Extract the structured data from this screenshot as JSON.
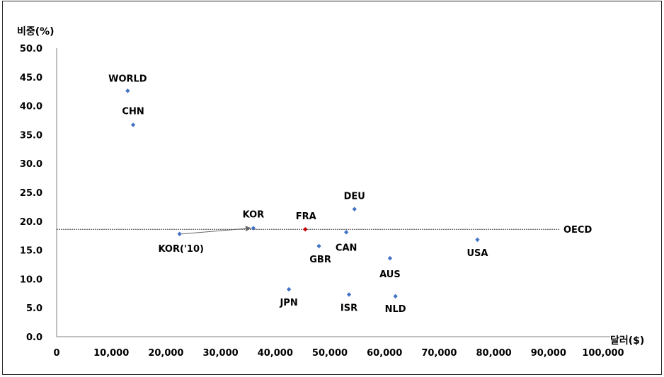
{
  "chart_data": {
    "type": "scatter",
    "ylabel": "비중(%)",
    "xlabel": "달러($)",
    "xlim": [
      0,
      100000
    ],
    "ylim": [
      0,
      50
    ],
    "x_ticks": [
      0,
      10000,
      20000,
      30000,
      40000,
      50000,
      60000,
      70000,
      80000,
      90000,
      100000
    ],
    "x_tick_labels": [
      "0",
      "10,000",
      "20,000",
      "30,000",
      "40,000",
      "50,000",
      "60,000",
      "70,000",
      "80,000",
      "90,000",
      "100,000"
    ],
    "y_ticks": [
      0,
      5,
      10,
      15,
      20,
      25,
      30,
      35,
      40,
      45,
      50
    ],
    "y_tick_labels": [
      "0.0",
      "5.0",
      "10.0",
      "15.0",
      "20.0",
      "25.0",
      "30.0",
      "35.0",
      "40.0",
      "45.0",
      "50.0"
    ],
    "grid": false,
    "points": [
      {
        "label": "WORLD",
        "x": 13000,
        "y": 42.6,
        "color": "#4472c4"
      },
      {
        "label": "CHN",
        "x": 14000,
        "y": 36.7,
        "color": "#4472c4"
      },
      {
        "label": "KOR('10)",
        "x": 22500,
        "y": 17.8,
        "color": "#4472c4"
      },
      {
        "label": "KOR",
        "x": 36000,
        "y": 18.8,
        "color": "#4472c4"
      },
      {
        "label": "JPN",
        "x": 42500,
        "y": 8.2,
        "color": "#4472c4"
      },
      {
        "label": "FRA",
        "x": 45500,
        "y": 18.6,
        "color": "#c00000"
      },
      {
        "label": "GBR",
        "x": 48000,
        "y": 15.7,
        "color": "#4472c4"
      },
      {
        "label": "CAN",
        "x": 53000,
        "y": 18.1,
        "color": "#4472c4"
      },
      {
        "label": "ISR",
        "x": 53500,
        "y": 7.3,
        "color": "#4472c4"
      },
      {
        "label": "DEU",
        "x": 54500,
        "y": 22.1,
        "color": "#4472c4"
      },
      {
        "label": "AUS",
        "x": 61000,
        "y": 13.6,
        "color": "#4472c4"
      },
      {
        "label": "NLD",
        "x": 62000,
        "y": 7.0,
        "color": "#4472c4"
      },
      {
        "label": "USA",
        "x": 77000,
        "y": 16.8,
        "color": "#4472c4"
      }
    ],
    "reference_line": {
      "label": "OECD",
      "y": 18.6
    },
    "arrow": {
      "from": "KOR('10)",
      "to": "KOR"
    }
  }
}
